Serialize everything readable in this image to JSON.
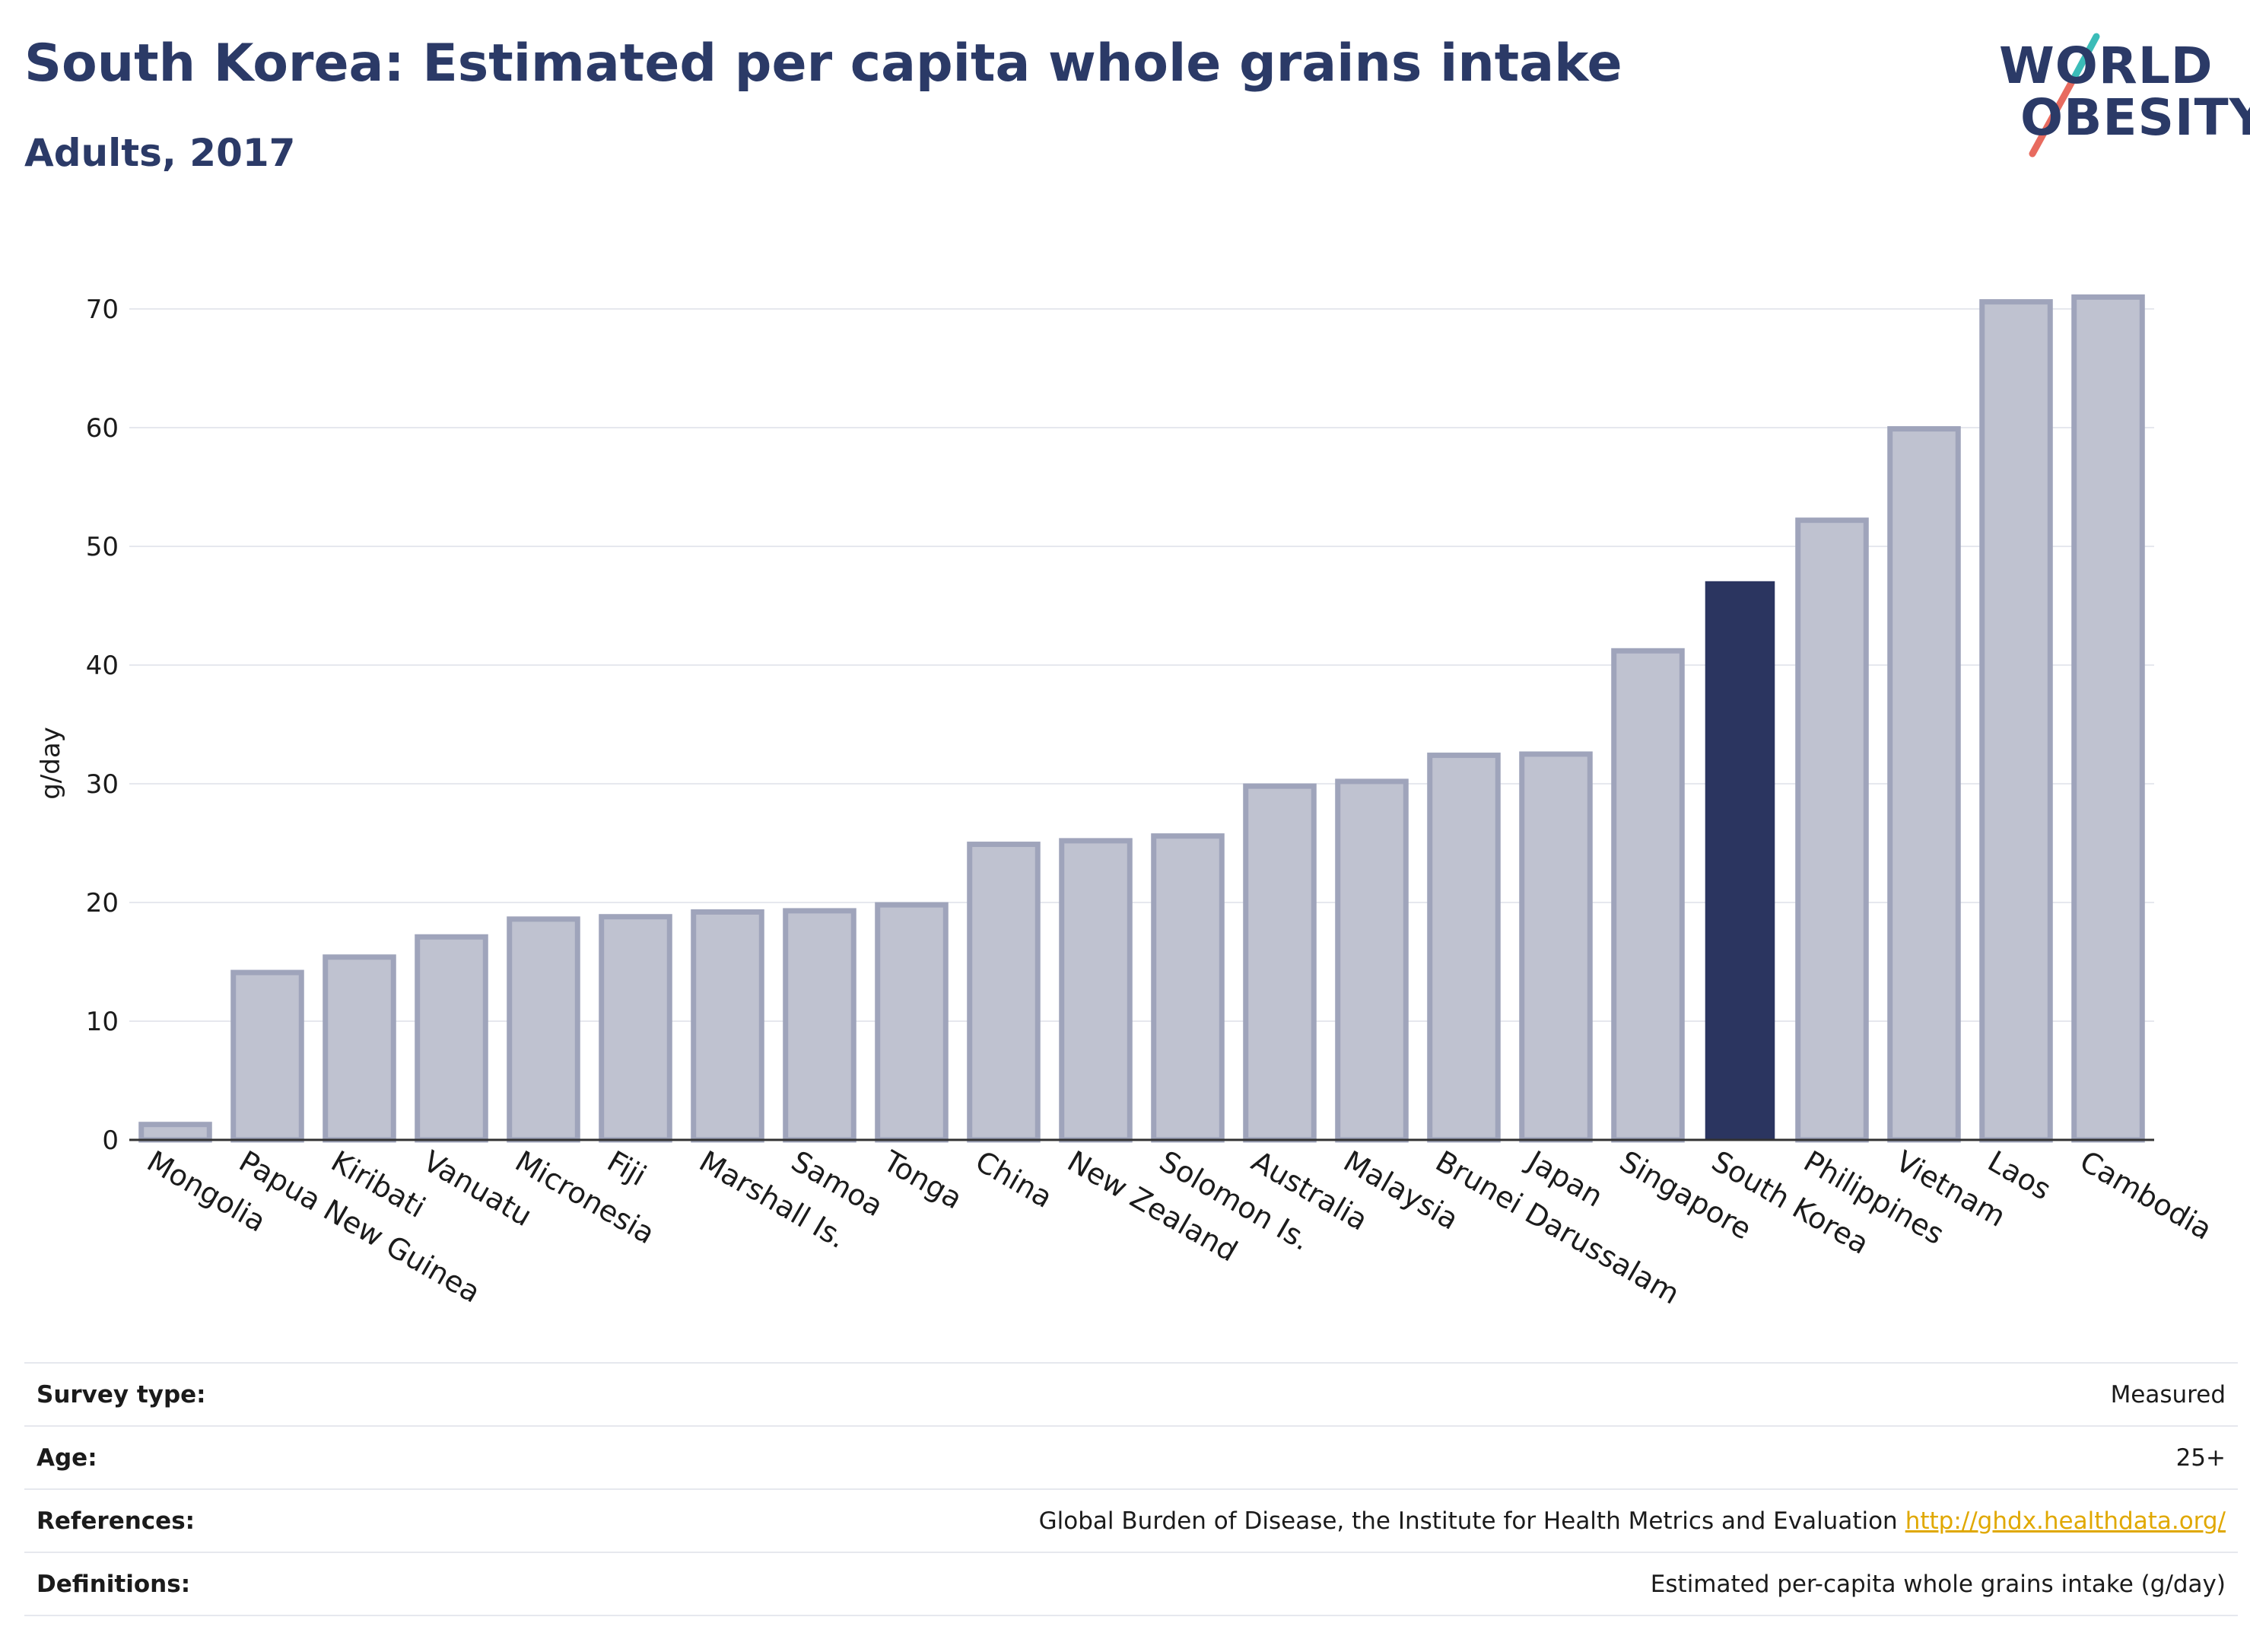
{
  "header": {
    "title": "South Korea: Estimated per capita whole grains intake",
    "subtitle": "Adults, 2017"
  },
  "logo": {
    "line1": "WORLD",
    "line2": "OBESITY"
  },
  "chart_data": {
    "type": "bar",
    "ylabel": "g/day",
    "ylim": [
      0,
      75
    ],
    "yticks": [
      0,
      10,
      20,
      30,
      40,
      50,
      60,
      70
    ],
    "grid": true,
    "highlight": "South Korea",
    "categories": [
      "Mongolia",
      "Papua New Guinea",
      "Kiribati",
      "Vanuatu",
      "Micronesia",
      "Fiji",
      "Marshall Is.",
      "Samoa",
      "Tonga",
      "China",
      "New Zealand",
      "Solomon Is.",
      "Australia",
      "Malaysia",
      "Brunei Darussalam",
      "Japan",
      "Singapore",
      "South Korea",
      "Philippines",
      "Vietnam",
      "Laos",
      "Cambodia"
    ],
    "values": [
      1.3,
      14.1,
      15.4,
      17.1,
      18.6,
      18.8,
      19.2,
      19.3,
      19.8,
      24.9,
      25.2,
      25.6,
      29.8,
      30.2,
      32.4,
      32.5,
      41.2,
      47.0,
      52.2,
      59.9,
      70.6,
      71.0
    ]
  },
  "colors": {
    "bar": "#bfc2d0",
    "bar_edge": "#9fa4bb",
    "highlight": "#2b3560",
    "grid": "#e6e8ee",
    "axis": "#333333",
    "logo_teal": "#3bbcb8",
    "logo_coral": "#e86b5f"
  },
  "meta": {
    "survey_type_label": "Survey type:",
    "survey_type_value": "Measured",
    "age_label": "Age:",
    "age_value": "25+",
    "references_label": "References:",
    "references_value": "Global Burden of Disease, the Institute for Health Metrics and Evaluation",
    "references_link": "http://ghdx.healthdata.org/",
    "definitions_label": "Definitions:",
    "definitions_value": "Estimated per-capita whole grains intake (g/day)"
  }
}
